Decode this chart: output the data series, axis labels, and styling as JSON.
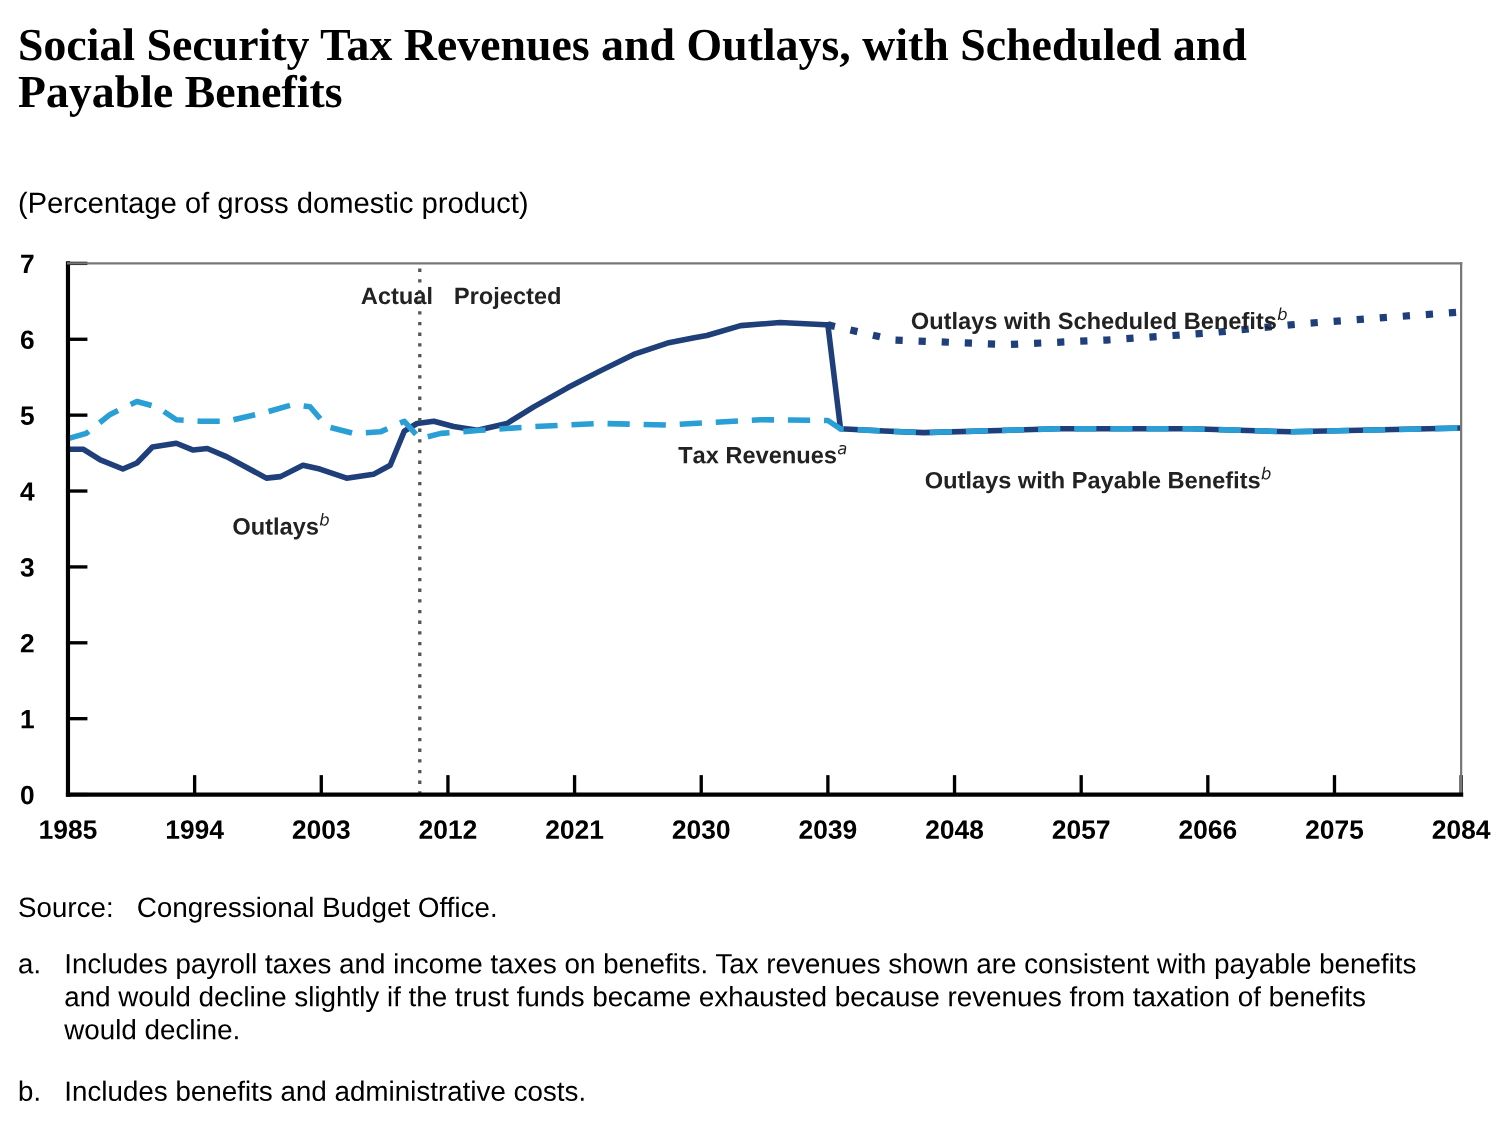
{
  "chart_data": {
    "type": "line",
    "title": "Social Security Tax Revenues and Outlays, with Scheduled and\nPayable Benefits",
    "subtitle": "(Percentage of gross domestic product)",
    "xlim": [
      1985,
      2084
    ],
    "xticks": [
      1985,
      1994,
      2003,
      2012,
      2021,
      2030,
      2039,
      2048,
      2057,
      2066,
      2075,
      2084
    ],
    "ylim": [
      0,
      7
    ],
    "yticks": [
      0,
      1,
      2,
      3,
      4,
      5,
      6,
      7
    ],
    "grid": false,
    "legend": false,
    "marker": "none",
    "ref_lines": [
      {
        "axis": "x",
        "value": 2010,
        "color": "#555555",
        "line_style": "dotted"
      }
    ],
    "series": [
      {
        "name": "Outlays$^{b}$",
        "color": "#1f3f7a",
        "line_style": "solid",
        "x": [
          1985,
          1986.1,
          1987.3,
          1988.9,
          1989.9,
          1991,
          1992.7,
          1993.9,
          1994.9,
          1996.3,
          1998,
          1999.1,
          2000.1,
          2001.7,
          2002.9,
          2004.8,
          2006.7,
          2007.9,
          2008.9,
          2009.8,
          2011,
          2012.4,
          2014.1,
          2016.2,
          2018.1,
          2020.5,
          2022.9,
          2025.2,
          2027.6,
          2029.5,
          2030.4,
          2032.8,
          2035.6,
          2039
        ],
        "values": [
          4.55,
          4.55,
          4.41,
          4.29,
          4.37,
          4.58,
          4.63,
          4.54,
          4.56,
          4.45,
          4.28,
          4.17,
          4.19,
          4.34,
          4.29,
          4.17,
          4.22,
          4.34,
          4.79,
          4.89,
          4.92,
          4.85,
          4.8,
          4.89,
          5.11,
          5.36,
          5.59,
          5.8,
          5.95,
          6.02,
          6.05,
          6.18,
          6.22,
          6.19
        ]
      },
      {
        "name": "Outlays with Payable Benefits$^{b}$",
        "color": "#1f3f7a",
        "line_style": "solid",
        "x": [
          2039,
          2039.9,
          2043,
          2045.8,
          2055.3,
          2064.8,
          2071.9,
          2084
        ],
        "values": [
          6.19,
          4.82,
          4.79,
          4.77,
          4.82,
          4.82,
          4.78,
          4.83
        ]
      },
      {
        "name": "Outlays with Scheduled Benefits$^{b}$",
        "color": "#1f3f7a",
        "line_style": "dotted",
        "x": [
          2039,
          2043.7,
          2051.7,
          2058.8,
          2065.9,
          2073,
          2084
        ],
        "values": [
          6.19,
          5.99,
          5.93,
          5.99,
          6.08,
          6.21,
          6.36
        ]
      },
      {
        "name": "Tax Revenues$^{a}$",
        "color": "#2a9fd6",
        "line_style": "dashed",
        "x": [
          1985,
          1986.3,
          1988,
          1989.9,
          1991.3,
          1992.7,
          1994.4,
          1996.3,
          1999.1,
          2001,
          2002.2,
          2003.4,
          2005.3,
          2007.2,
          2008.9,
          2010,
          2011.5,
          2014.3,
          2018.1,
          2022.9,
          2027.6,
          2034.2,
          2039,
          2039.9,
          2043,
          2045.8,
          2055.3,
          2064.8,
          2071.9,
          2084
        ],
        "values": [
          4.69,
          4.76,
          5.01,
          5.18,
          5.11,
          4.94,
          4.92,
          4.92,
          5.04,
          5.14,
          5.11,
          4.85,
          4.76,
          4.78,
          4.92,
          4.69,
          4.76,
          4.8,
          4.85,
          4.89,
          4.87,
          4.94,
          4.93,
          4.82,
          4.79,
          4.77,
          4.82,
          4.82,
          4.78,
          4.83
        ]
      }
    ],
    "annotations": [
      "Actual",
      "Projected",
      "Source:   Congressional Budget Office.",
      "a.   Includes payroll taxes and income taxes on benefits. Tax revenues shown are consistent with payable benefits\n      and would decline slightly if the trust funds became exhausted because revenues from taxation of benefits\n      would decline.",
      "b.   Includes benefits and administrative costs."
    ]
  }
}
